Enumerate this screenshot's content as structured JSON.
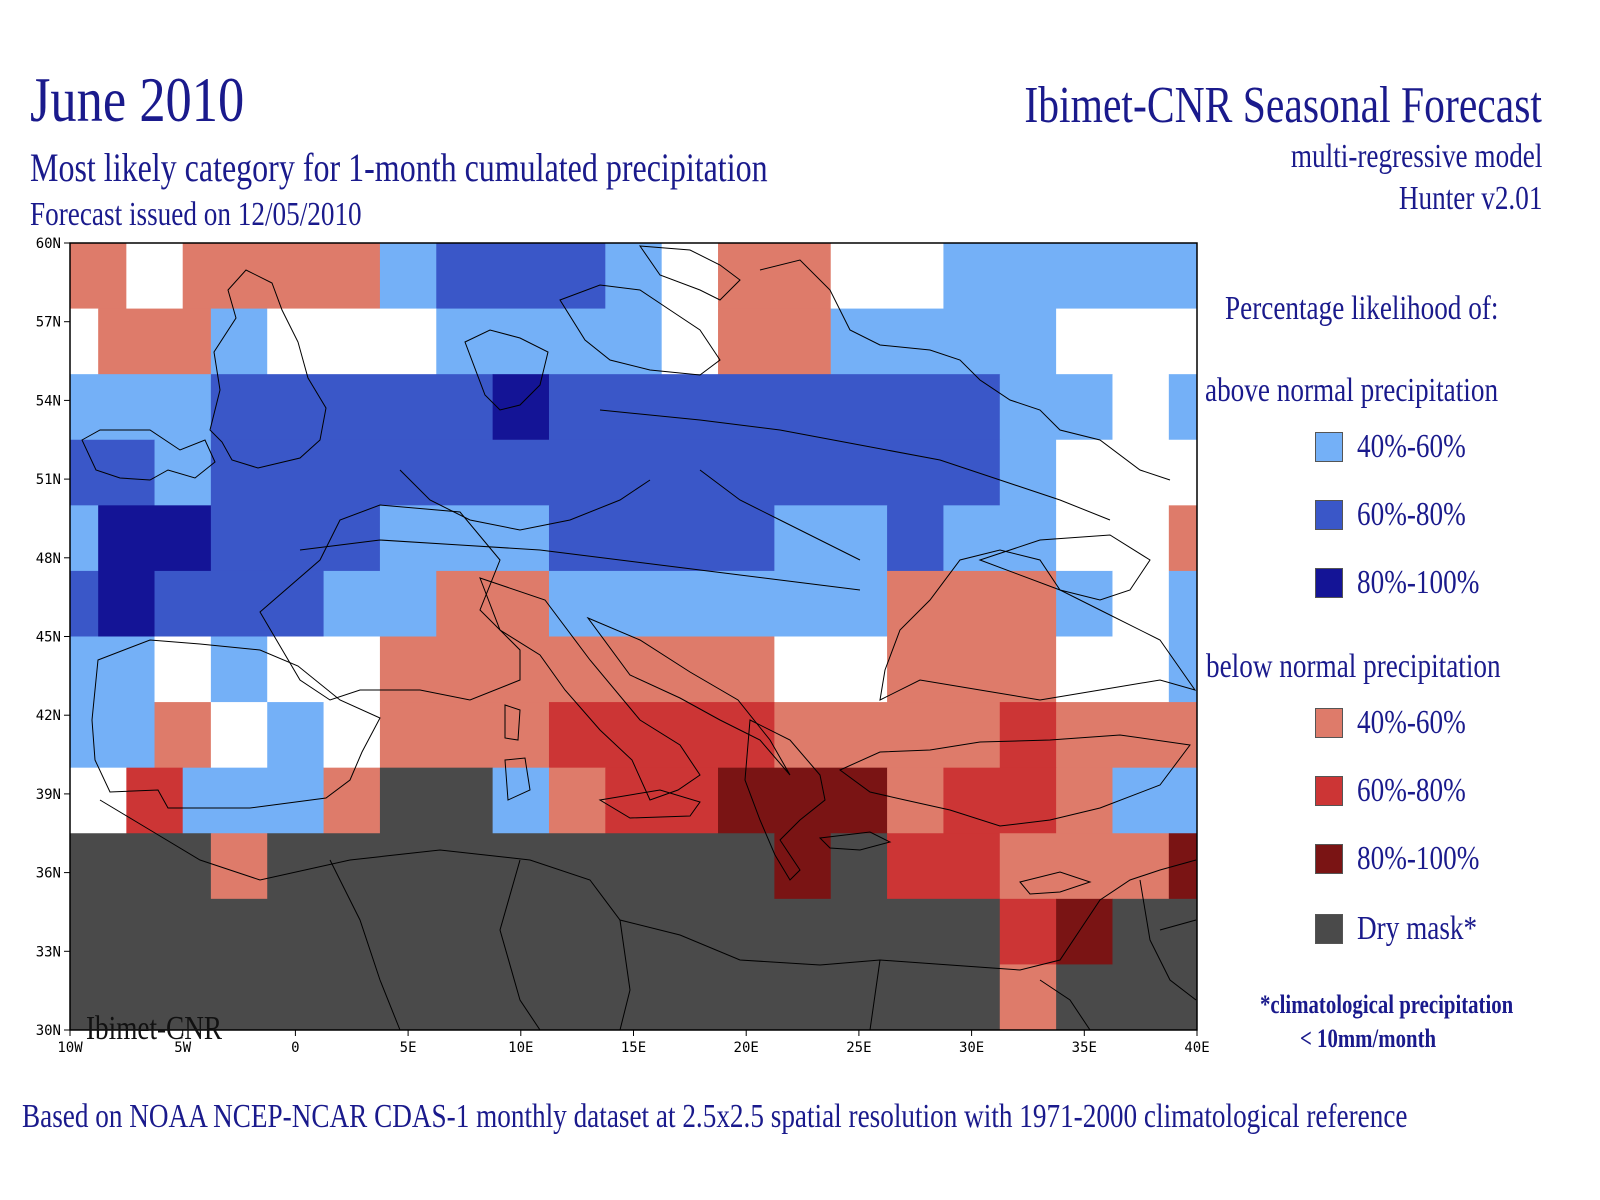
{
  "header": {
    "title_left": "June 2010",
    "subtitle": "Most likely category for 1-month cumulated precipitation",
    "issued": "Forecast issued on 12/05/2010",
    "title_right": "Ibimet-CNR Seasonal Forecast",
    "model": "multi-regressive model",
    "version": "Hunter v2.01"
  },
  "footer": "Based on NOAA NCEP-NCAR CDAS-1 monthly dataset at 2.5x2.5 spatial resolution with 1971-2000 climatological reference",
  "watermark": "Ibimet-CNR",
  "legend": {
    "heading": "Percentage likelihood of:",
    "above_heading": "above normal precipitation",
    "below_heading": "below normal precipitation",
    "items": [
      {
        "key": "A1",
        "label": "40%-60%",
        "color": "#74b0f7"
      },
      {
        "key": "A2",
        "label": "60%-80%",
        "color": "#3a57c8"
      },
      {
        "key": "A3",
        "label": "80%-100%",
        "color": "#141496"
      },
      {
        "key": "B1",
        "label": "40%-60%",
        "color": "#de7b6a"
      },
      {
        "key": "B2",
        "label": "60%-80%",
        "color": "#cc3535"
      },
      {
        "key": "B3",
        "label": "80%-100%",
        "color": "#7a1414"
      },
      {
        "key": "D",
        "label": "Dry mask*",
        "color": "#4a4a4a"
      }
    ],
    "note1": "*climatological precipitation",
    "note2": "< 10mm/month"
  },
  "map": {
    "lon_range": [
      -10,
      40
    ],
    "lat_range": [
      30,
      60
    ],
    "x_ticks": [
      "10W",
      "5W",
      "0",
      "5E",
      "10E",
      "15E",
      "20E",
      "25E",
      "30E",
      "35E",
      "40E"
    ],
    "y_ticks": [
      "60N",
      "57N",
      "54N",
      "51N",
      "48N",
      "45N",
      "42N",
      "39N",
      "36N",
      "33N",
      "30N"
    ],
    "colors": {
      "W": "#ffffff",
      "A1": "#74b0f7",
      "A2": "#3a57c8",
      "A3": "#141496",
      "B1": "#de7b6a",
      "B2": "#cc3535",
      "B3": "#7a1414",
      "D": "#4a4a4a"
    },
    "rows": [
      {
        "lat": 58.75,
        "cells": [
          [
            "B1",
            -10,
            -7.5
          ],
          [
            "W",
            -7.5,
            -5
          ],
          [
            "B1",
            -5,
            3.75
          ],
          [
            "A1",
            3.75,
            6.25
          ],
          [
            "A2",
            6.25,
            13.75
          ],
          [
            "A1",
            13.75,
            16.25
          ],
          [
            "W",
            16.25,
            18.75
          ],
          [
            "B1",
            18.75,
            23.75
          ],
          [
            "W",
            23.75,
            28.75
          ],
          [
            "A1",
            28.75,
            40
          ]
        ]
      },
      {
        "lat": 56.25,
        "cells": [
          [
            "W",
            -10,
            -8.75
          ],
          [
            "B1",
            -8.75,
            -3.75
          ],
          [
            "A1",
            -3.75,
            -1.25
          ],
          [
            "W",
            -1.25,
            6.25
          ],
          [
            "A1",
            6.25,
            13.75
          ],
          [
            "A1",
            13.75,
            16.25
          ],
          [
            "W",
            16.25,
            18.75
          ],
          [
            "B1",
            18.75,
            23.75
          ],
          [
            "A1",
            23.75,
            33.75
          ],
          [
            "W",
            33.75,
            40
          ]
        ]
      },
      {
        "lat": 53.75,
        "cells": [
          [
            "A1",
            -10,
            -3.75
          ],
          [
            "A2",
            -3.75,
            8.75
          ],
          [
            "A3",
            8.75,
            11.25
          ],
          [
            "A2",
            11.25,
            31.25
          ],
          [
            "A1",
            31.25,
            36.25
          ],
          [
            "W",
            36.25,
            38.75
          ],
          [
            "A1",
            38.75,
            40
          ]
        ]
      },
      {
        "lat": 51.25,
        "cells": [
          [
            "A2",
            -10,
            -6.25
          ],
          [
            "A1",
            -6.25,
            -3.75
          ],
          [
            "A2",
            -3.75,
            31.25
          ],
          [
            "A1",
            31.25,
            33.75
          ],
          [
            "W",
            33.75,
            40
          ]
        ]
      },
      {
        "lat": 48.75,
        "cells": [
          [
            "A1",
            -10,
            -8.75
          ],
          [
            "A3",
            -8.75,
            -3.75
          ],
          [
            "A2",
            -3.75,
            3.75
          ],
          [
            "A1",
            3.75,
            11.25
          ],
          [
            "A2",
            11.25,
            21.25
          ],
          [
            "A1",
            21.25,
            26.25
          ],
          [
            "A2",
            26.25,
            28.75
          ],
          [
            "A1",
            28.75,
            33.75
          ],
          [
            "W",
            33.75,
            38.75
          ],
          [
            "B1",
            38.75,
            40
          ]
        ]
      },
      {
        "lat": 46.25,
        "cells": [
          [
            "A2",
            -10,
            -8.75
          ],
          [
            "A3",
            -8.75,
            -6.25
          ],
          [
            "A2",
            -6.25,
            1.25
          ],
          [
            "A1",
            1.25,
            6.25
          ],
          [
            "B1",
            6.25,
            11.25
          ],
          [
            "A1",
            11.25,
            26.25
          ],
          [
            "B1",
            26.25,
            33.75
          ],
          [
            "A1",
            33.75,
            36.25
          ],
          [
            "W",
            36.25,
            38.75
          ],
          [
            "A1",
            38.75,
            40
          ]
        ]
      },
      {
        "lat": 43.75,
        "cells": [
          [
            "A1",
            -10,
            -6.25
          ],
          [
            "W",
            -6.25,
            -3.75
          ],
          [
            "A1",
            -3.75,
            -1.25
          ],
          [
            "W",
            -1.25,
            3.75
          ],
          [
            "B1",
            3.75,
            21.25
          ],
          [
            "W",
            21.25,
            26.25
          ],
          [
            "B1",
            26.25,
            33.75
          ],
          [
            "W",
            33.75,
            38.75
          ],
          [
            "A1",
            38.75,
            40
          ]
        ]
      },
      {
        "lat": 41.25,
        "cells": [
          [
            "A1",
            -10,
            -6.25
          ],
          [
            "B1",
            -6.25,
            -3.75
          ],
          [
            "W",
            -3.75,
            -1.25
          ],
          [
            "A1",
            -1.25,
            1.25
          ],
          [
            "W",
            1.25,
            3.75
          ],
          [
            "B1",
            3.75,
            11.25
          ],
          [
            "B2",
            11.25,
            21.25
          ],
          [
            "B1",
            21.25,
            31.25
          ],
          [
            "B2",
            31.25,
            33.75
          ],
          [
            "B1",
            33.75,
            40
          ]
        ]
      },
      {
        "lat": 38.75,
        "cells": [
          [
            "W",
            -10,
            -7.5
          ],
          [
            "B2",
            -7.5,
            -5
          ],
          [
            "A1",
            -5,
            1.25
          ],
          [
            "B1",
            1.25,
            3.75
          ],
          [
            "D",
            3.75,
            8.75
          ],
          [
            "A1",
            8.75,
            11.25
          ],
          [
            "B1",
            11.25,
            13.75
          ],
          [
            "B2",
            13.75,
            18.75
          ],
          [
            "B3",
            18.75,
            26.25
          ],
          [
            "B1",
            26.25,
            28.75
          ],
          [
            "B2",
            28.75,
            33.75
          ],
          [
            "B1",
            33.75,
            36.25
          ],
          [
            "A1",
            36.25,
            40
          ]
        ]
      },
      {
        "lat": 36.25,
        "cells": [
          [
            "D",
            -10,
            -3.75
          ],
          [
            "B1",
            -3.75,
            -1.25
          ],
          [
            "D",
            -1.25,
            21.25
          ],
          [
            "B3",
            21.25,
            23.75
          ],
          [
            "D",
            23.75,
            26.25
          ],
          [
            "B2",
            26.25,
            31.25
          ],
          [
            "B1",
            31.25,
            38.75
          ],
          [
            "B3",
            38.75,
            40
          ]
        ]
      },
      {
        "lat": 33.75,
        "cells": [
          [
            "D",
            -10,
            31.25
          ],
          [
            "B2",
            31.25,
            33.75
          ],
          [
            "B3",
            33.75,
            36.25
          ],
          [
            "D",
            36.25,
            40
          ]
        ]
      },
      {
        "lat": 31.25,
        "cells": [
          [
            "D",
            -10,
            31.25
          ],
          [
            "B1",
            31.25,
            33.75
          ],
          [
            "D",
            33.75,
            40
          ]
        ]
      }
    ]
  }
}
